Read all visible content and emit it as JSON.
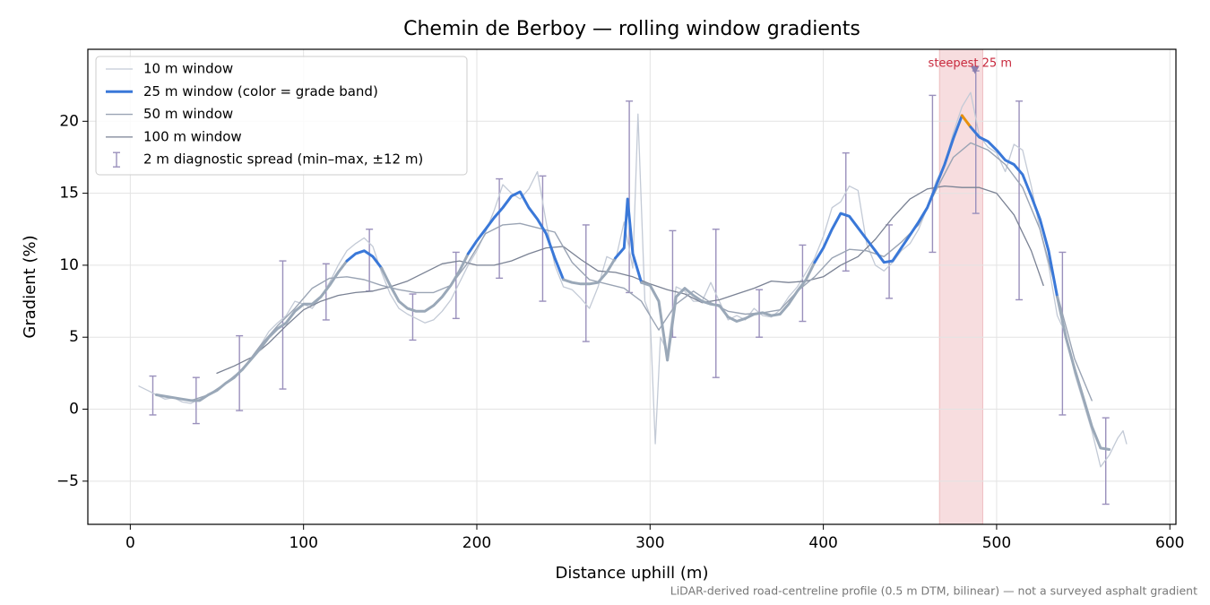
{
  "chart_data": {
    "type": "line",
    "title": "Chemin de Berboy — rolling window gradients",
    "xlabel": "Distance uphill (m)",
    "ylabel": "Gradient (%)",
    "footnote": "LiDAR-derived road-centreline profile (0.5 m DTM, bilinear) — not a surveyed asphalt gradient",
    "xlim": [
      -24.5,
      603.5
    ],
    "ylim": [
      -8,
      25
    ],
    "xticks": [
      0,
      100,
      200,
      300,
      400,
      500,
      600
    ],
    "yticks": [
      {
        "value": -5,
        "label": "−5"
      },
      0,
      5,
      10,
      15,
      20
    ],
    "grid": true,
    "legend": "upper left",
    "highlight": {
      "xlim": [
        467,
        492
      ],
      "label": "steepest 25 m",
      "color": "#d9666f",
      "marker_x": 487.5,
      "marker_y": 23.6
    },
    "series": [
      {
        "name": "10 m window",
        "color": "#c3cad6",
        "width": 1.3,
        "x": [
          5,
          10,
          15,
          20,
          25,
          30,
          35,
          40,
          45,
          50,
          55,
          60,
          65,
          70,
          75,
          80,
          85,
          90,
          95,
          100,
          105,
          110,
          115,
          120,
          125,
          130,
          135,
          140,
          145,
          150,
          155,
          160,
          165,
          170,
          175,
          180,
          185,
          190,
          195,
          200,
          205,
          210,
          215,
          220,
          225,
          230,
          235,
          240,
          245,
          250,
          255,
          260,
          265,
          270,
          275,
          280,
          285,
          290,
          293,
          297,
          300,
          303,
          306,
          310,
          315,
          320,
          325,
          330,
          335,
          340,
          345,
          350,
          355,
          360,
          365,
          370,
          375,
          380,
          385,
          390,
          395,
          400,
          405,
          410,
          415,
          420,
          425,
          430,
          435,
          440,
          445,
          450,
          455,
          460,
          465,
          470,
          475,
          480,
          485,
          490,
          495,
          500,
          505,
          510,
          515,
          520,
          525,
          530,
          535,
          540,
          545,
          550,
          555,
          560,
          565,
          570,
          573,
          575
        ],
        "values": [
          1.6,
          1.3,
          1.0,
          0.7,
          0.8,
          0.5,
          0.4,
          0.7,
          1.0,
          1.3,
          1.8,
          2.3,
          2.7,
          3.6,
          4.4,
          5.4,
          6.0,
          6.5,
          7.5,
          7.3,
          7.0,
          7.8,
          8.8,
          10.0,
          11.0,
          11.5,
          11.9,
          11.3,
          9.5,
          8.0,
          7.0,
          6.6,
          6.3,
          6.0,
          6.2,
          6.8,
          7.6,
          8.8,
          10.0,
          11.0,
          12.3,
          13.8,
          15.6,
          15.0,
          14.6,
          15.3,
          16.5,
          13.0,
          10.0,
          8.5,
          8.3,
          7.7,
          7.0,
          8.5,
          10.6,
          10.3,
          13.0,
          9.8,
          20.5,
          7.5,
          6.5,
          -2.4,
          5.0,
          4.0,
          8.5,
          8.2,
          7.5,
          7.5,
          8.8,
          7.5,
          6.2,
          6.5,
          6.2,
          7.0,
          6.5,
          6.4,
          6.9,
          7.8,
          8.5,
          9.5,
          10.5,
          12.0,
          14.0,
          14.4,
          15.5,
          15.2,
          11.5,
          10.0,
          9.6,
          10.2,
          11.0,
          11.5,
          12.5,
          14.0,
          15.8,
          17.0,
          19.2,
          21.0,
          22.0,
          19.0,
          18.2,
          17.8,
          16.5,
          18.4,
          18.0,
          15.5,
          12.5,
          10.0,
          6.5,
          5.2,
          2.5,
          0.5,
          -1.5,
          -4.0,
          -3.2,
          -2.0,
          -1.5,
          -2.4
        ]
      },
      {
        "name": "25 m window (color = grade band)",
        "color": "#3a78d8",
        "width": 3,
        "grade_bands": {
          "thresholds": [
            10,
            20
          ],
          "colors": [
            "#9aa8b8",
            "#3a78d8",
            "#e8900c"
          ]
        },
        "x": [
          15,
          20,
          25,
          30,
          35,
          40,
          45,
          50,
          55,
          60,
          65,
          70,
          75,
          80,
          85,
          90,
          95,
          100,
          105,
          110,
          115,
          120,
          125,
          130,
          135,
          140,
          145,
          150,
          155,
          160,
          165,
          170,
          175,
          180,
          185,
          190,
          195,
          200,
          205,
          210,
          215,
          220,
          225,
          230,
          235,
          240,
          245,
          250,
          255,
          260,
          265,
          270,
          275,
          280,
          285,
          287,
          290,
          295,
          300,
          305,
          310,
          315,
          320,
          325,
          330,
          335,
          340,
          345,
          350,
          355,
          360,
          365,
          370,
          375,
          380,
          385,
          390,
          395,
          400,
          405,
          410,
          415,
          420,
          425,
          430,
          435,
          440,
          445,
          450,
          455,
          460,
          465,
          470,
          475,
          480,
          485,
          490,
          495,
          500,
          505,
          510,
          515,
          520,
          525,
          530,
          535,
          540,
          545,
          550,
          555,
          560,
          565
        ],
        "values": [
          1.0,
          0.9,
          0.8,
          0.7,
          0.6,
          0.6,
          1.0,
          1.3,
          1.8,
          2.2,
          2.8,
          3.5,
          4.2,
          5.0,
          5.6,
          6.0,
          6.8,
          7.3,
          7.3,
          7.8,
          8.6,
          9.5,
          10.3,
          10.8,
          11.0,
          10.6,
          9.8,
          8.6,
          7.5,
          7.0,
          6.8,
          6.8,
          7.2,
          7.8,
          8.6,
          9.6,
          10.8,
          11.7,
          12.5,
          13.3,
          14.0,
          14.8,
          15.1,
          14.0,
          13.2,
          12.2,
          10.5,
          9.0,
          8.8,
          8.7,
          8.7,
          8.8,
          9.5,
          10.5,
          11.2,
          14.6,
          10.8,
          8.8,
          8.6,
          7.5,
          3.4,
          7.8,
          8.4,
          7.9,
          7.5,
          7.3,
          7.2,
          6.4,
          6.1,
          6.3,
          6.6,
          6.7,
          6.5,
          6.6,
          7.3,
          8.2,
          9.0,
          10.2,
          11.2,
          12.5,
          13.6,
          13.4,
          12.6,
          11.8,
          11.0,
          10.2,
          10.3,
          11.2,
          12.1,
          13.0,
          14.0,
          15.5,
          17.0,
          18.8,
          20.4,
          19.6,
          18.9,
          18.6,
          18.0,
          17.3,
          17.0,
          16.3,
          14.8,
          13.2,
          11.0,
          7.8,
          5.0,
          2.8,
          0.8,
          -1.2,
          -2.7,
          -2.8
        ]
      },
      {
        "name": "50 m window",
        "color": "#9aa4b4",
        "width": 1.4,
        "x": [
          15,
          25,
          35,
          45,
          55,
          65,
          75,
          85,
          95,
          105,
          115,
          125,
          135,
          145,
          155,
          165,
          175,
          185,
          195,
          205,
          215,
          225,
          235,
          245,
          255,
          265,
          275,
          285,
          295,
          305,
          315,
          325,
          335,
          345,
          355,
          365,
          375,
          385,
          395,
          405,
          415,
          425,
          435,
          445,
          455,
          465,
          475,
          485,
          495,
          505,
          515,
          525,
          535,
          545,
          555
        ],
        "values": [
          1.0,
          0.8,
          0.6,
          1.0,
          1.8,
          2.8,
          4.4,
          5.8,
          7.0,
          8.4,
          9.1,
          9.2,
          9.0,
          8.6,
          8.3,
          8.1,
          8.1,
          8.6,
          10.2,
          12.2,
          12.8,
          12.9,
          12.6,
          12.3,
          10.2,
          9.0,
          8.7,
          8.4,
          7.5,
          5.5,
          7.3,
          8.2,
          7.4,
          6.8,
          6.6,
          6.7,
          6.9,
          8.2,
          9.2,
          10.5,
          11.1,
          11.0,
          10.6,
          11.6,
          12.8,
          15.2,
          17.5,
          18.5,
          18.0,
          17.0,
          15.4,
          12.5,
          8.0,
          3.5,
          0.6
        ]
      },
      {
        "name": "100 m window",
        "color": "#7a8294",
        "width": 1.3,
        "x": [
          50,
          60,
          70,
          80,
          90,
          100,
          110,
          120,
          130,
          140,
          150,
          160,
          170,
          180,
          190,
          200,
          210,
          220,
          230,
          240,
          250,
          260,
          270,
          280,
          290,
          300,
          310,
          320,
          330,
          340,
          350,
          360,
          370,
          380,
          390,
          400,
          410,
          420,
          430,
          440,
          450,
          460,
          470,
          480,
          490,
          500,
          510,
          520,
          527
        ],
        "values": [
          2.5,
          3.0,
          3.6,
          4.6,
          5.8,
          6.9,
          7.5,
          7.9,
          8.1,
          8.2,
          8.5,
          8.9,
          9.5,
          10.1,
          10.3,
          10.0,
          10.0,
          10.3,
          10.8,
          11.2,
          11.3,
          10.4,
          9.6,
          9.5,
          9.2,
          8.7,
          8.3,
          8.0,
          7.4,
          7.6,
          8.0,
          8.4,
          8.9,
          8.8,
          8.9,
          9.2,
          10.0,
          10.6,
          11.8,
          13.3,
          14.6,
          15.3,
          15.5,
          15.4,
          15.4,
          15.0,
          13.5,
          11.0,
          8.6
        ]
      }
    ],
    "errorbars": {
      "name": "2 m diagnostic spread (min–max, ±12 m)",
      "color": "#9a90bc",
      "x": [
        13,
        38,
        63,
        88,
        113,
        138,
        163,
        188,
        213,
        238,
        263,
        288,
        313,
        338,
        363,
        388,
        413,
        438,
        463,
        488,
        513,
        538,
        563
      ],
      "low": [
        -0.4,
        -1.0,
        -0.1,
        1.4,
        6.2,
        8.2,
        4.8,
        6.3,
        9.1,
        7.5,
        4.7,
        8.1,
        5.0,
        2.2,
        5.0,
        6.1,
        9.6,
        7.7,
        10.9,
        13.6,
        7.6,
        -0.4,
        -6.6
      ],
      "high": [
        2.3,
        2.2,
        5.1,
        10.3,
        10.1,
        12.5,
        8.0,
        10.9,
        16.0,
        16.2,
        12.8,
        21.4,
        12.4,
        12.5,
        8.3,
        11.4,
        17.8,
        12.8,
        21.8,
        23.5,
        21.4,
        10.9,
        -0.6
      ]
    }
  }
}
